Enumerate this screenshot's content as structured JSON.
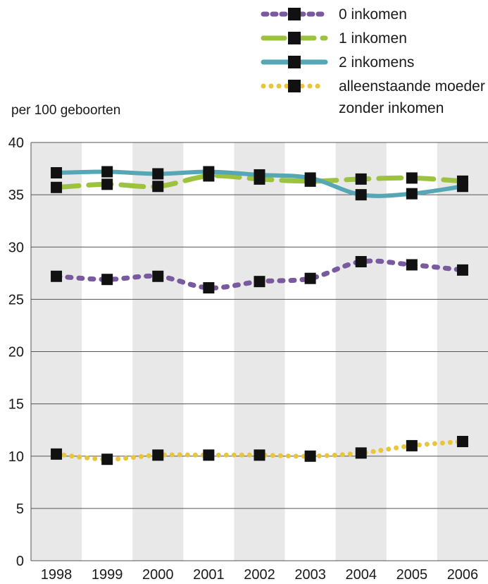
{
  "chart_data": {
    "type": "line",
    "title": "",
    "xlabel": "",
    "ylabel": "per 100 geboorten",
    "categories": [
      "1998",
      "1999",
      "2000",
      "2001",
      "2002",
      "2003",
      "2004",
      "2005",
      "2006"
    ],
    "ylim": [
      0,
      40
    ],
    "yticks": [
      "0",
      "5",
      "10",
      "15",
      "20",
      "25",
      "30",
      "35",
      "40"
    ],
    "grid": "horizontal",
    "legend_position": "top-right",
    "series": [
      {
        "name": "0 inkomen",
        "style": "dashed",
        "color": "#7a5a9e",
        "values": [
          27.2,
          26.9,
          27.2,
          26.1,
          26.7,
          27.0,
          28.6,
          28.3,
          27.8
        ]
      },
      {
        "name": "1 inkomen",
        "style": "dashed",
        "color": "#9cc23f",
        "values": [
          35.7,
          36.0,
          35.8,
          36.8,
          36.5,
          36.3,
          36.5,
          36.6,
          36.3
        ]
      },
      {
        "name": "2 inkomens",
        "style": "solid",
        "color": "#55a7b5",
        "values": [
          37.1,
          37.2,
          37.0,
          37.2,
          36.9,
          36.6,
          35.0,
          35.1,
          35.8
        ]
      },
      {
        "name": "alleenstaande moeder zonder inkomen",
        "name_lines": [
          "alleenstaande moeder",
          "zonder inkomen"
        ],
        "style": "dotted",
        "color": "#e9c53a",
        "values": [
          10.2,
          9.7,
          10.1,
          10.1,
          10.1,
          10.0,
          10.3,
          11.0,
          11.4
        ]
      }
    ],
    "marker_color": "#111111",
    "band_color": "#e8e8e8",
    "gridline_color": "#555555"
  }
}
